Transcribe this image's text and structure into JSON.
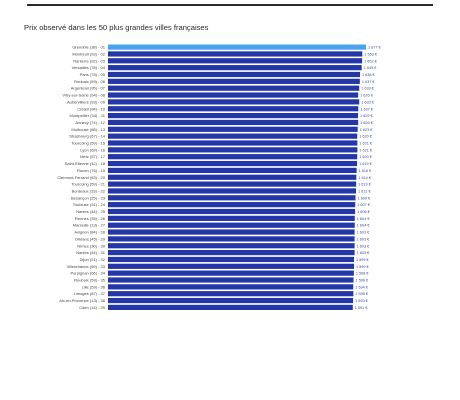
{
  "chart_data": {
    "type": "bar",
    "orientation": "horizontal",
    "title": "Prix observé dans les 50 plus grandes villes françaises",
    "highlight_color": "#4aa3ec",
    "bar_color": "#2337a6",
    "xlim": [
      0,
      1677
    ],
    "categories": [
      "Grenoble (38) - 01",
      "Montreuil (93) - 02",
      "Nanterre (92) - 03",
      "Versailles (78) - 04",
      "Paris (75) - 05",
      "Roubaix (59) - 06",
      "Argenteuil (95) - 07",
      "Vitry-sur-Seine (94) - 08",
      "Aubervilliers (93) - 09",
      "Créteil (94) - 10",
      "Montpellier (34) - 11",
      "Annecy (74) - 12",
      "Mulhouse (68) - 13",
      "Strasbourg (67) - 14",
      "Tourcoing (59) - 15",
      "Lyon (69) - 16",
      "Metz (57) - 17",
      "Saint-Étienne (42) - 18",
      "Rouen (76) - 19",
      "Clermont-Ferrand (63) - 20",
      "Tourcoing (59) - 21",
      "Bordeaux (33) - 22",
      "Besançon (25) - 23",
      "Toulouse (31) - 24",
      "Nantes (44) - 25",
      "Rennes (35) - 26",
      "Marseille (13) - 27",
      "Avignon (84) - 28",
      "Orléans (45) - 29",
      "Nîmes (30) - 30",
      "Nantes (44) - 31",
      "Dijon (21) - 32",
      "Villeurbanne (69) - 33",
      "Perpignan (66) - 34",
      "Roubaix (59) - 35",
      "Lille (59) - 36",
      "Limoges (87) - 37",
      "Aix-en-Provence (13) - 38",
      "Caen (14) - 39"
    ],
    "values": [
      1677,
      1653,
      1652,
      1649,
      1638,
      1637,
      1633,
      1626,
      1633,
      1627,
      1625,
      1626,
      1623,
      1620,
      1621,
      1621,
      1620,
      1619,
      1616,
      1614,
      1613,
      1612,
      1609,
      1607,
      1606,
      1604,
      1604,
      1603,
      1603,
      1603,
      1603,
      1599,
      1599,
      1598,
      1596,
      1594,
      1595,
      1593,
      1591
    ],
    "value_labels": [
      "1 677 €",
      "1 653 €",
      "1 652 €",
      "1 649 €",
      "1 638 €",
      "1 637 €",
      "1 633 €",
      "1 626 €",
      "1 633 €",
      "1 627 €",
      "1 625 €",
      "1 626 €",
      "1 623 €",
      "1 620 €",
      "1 621 €",
      "1 621 €",
      "1 620 €",
      "1 619 €",
      "1 616 €",
      "1 614 €",
      "1 613 €",
      "1 612 €",
      "1 609 €",
      "1 607 €",
      "1 606 €",
      "1 604 €",
      "1 604 €",
      "1 603 €",
      "1 603 €",
      "1 603 €",
      "1 603 €",
      "1 599 €",
      "1 599 €",
      "1 598 €",
      "1 596 €",
      "1 594 €",
      "1 595 €",
      "1 593 €",
      "1 591 €"
    ]
  }
}
